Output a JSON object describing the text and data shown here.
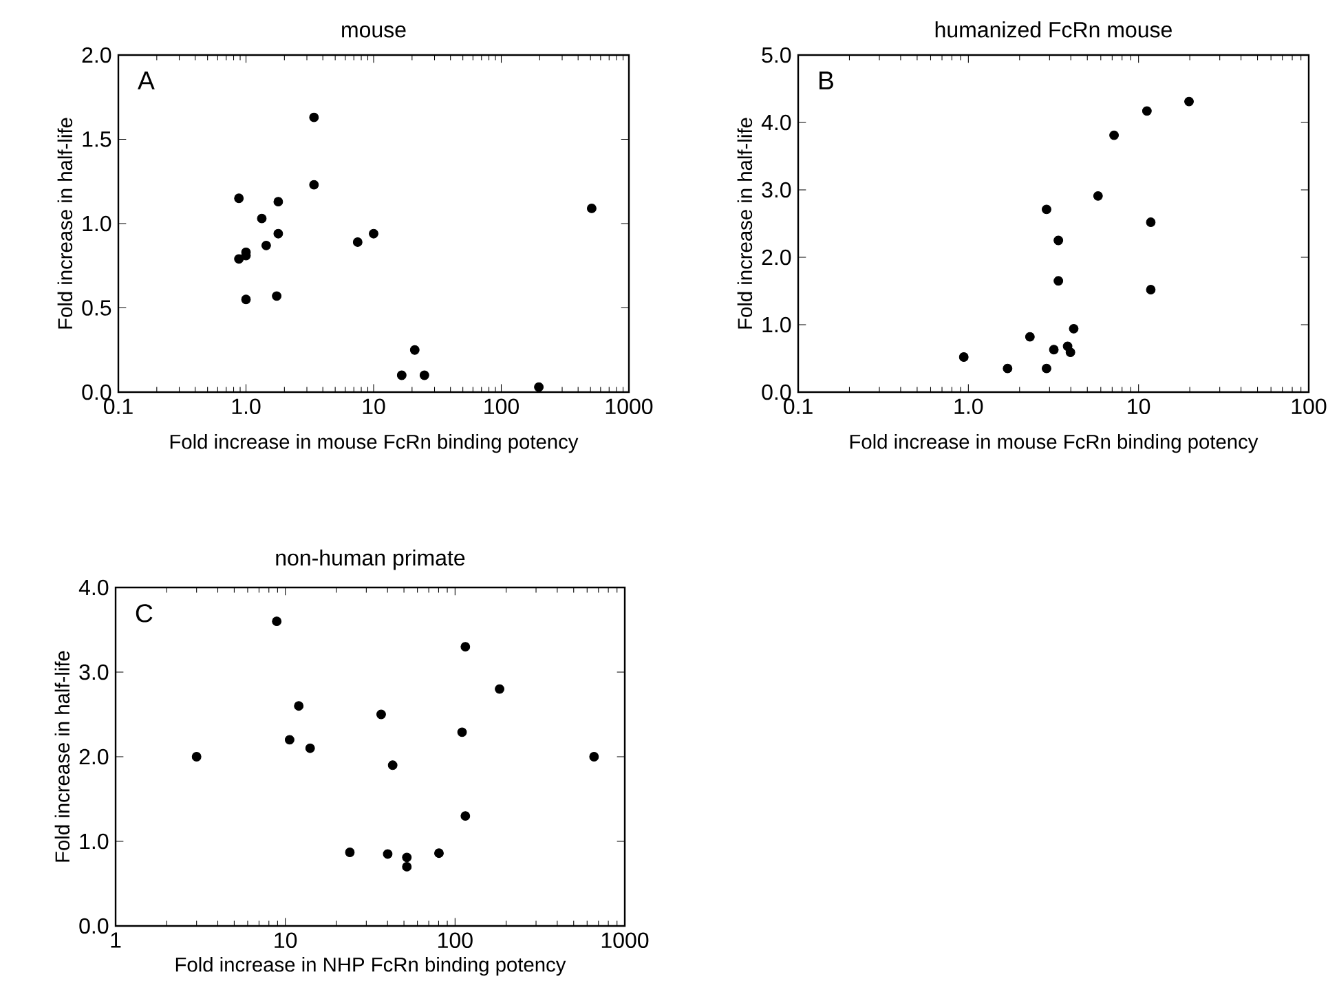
{
  "chart_data": [
    {
      "type": "scatter",
      "title": "mouse",
      "xlabel": "Fold increase in mouse FcRn binding potency",
      "ylabel": "Fold increase in half-life",
      "annotations": [
        "A"
      ],
      "log": "x",
      "marker": "circle",
      "color": "#000000",
      "x": [
        0.88,
        0.88,
        1.0,
        1.0,
        1.0,
        1.33,
        1.44,
        1.79,
        1.79,
        1.74,
        3.41,
        3.41,
        7.5,
        10,
        16.6,
        21,
        25,
        197,
        511
      ],
      "values": [
        1.15,
        0.79,
        0.83,
        0.81,
        0.55,
        1.03,
        0.87,
        1.13,
        0.94,
        0.57,
        1.63,
        1.23,
        0.89,
        0.94,
        0.1,
        0.25,
        0.1,
        0.03,
        1.09
      ],
      "xlim": [
        0.1,
        1000
      ],
      "ylim": [
        0,
        2
      ],
      "xticks": [
        0.1,
        {
          "value": 1,
          "label": "1.0"
        },
        10,
        100,
        1000
      ],
      "yticks": [
        {
          "value": 0,
          "label": "0.0"
        },
        0.5,
        {
          "value": 1,
          "label": "1.0"
        },
        1.5,
        {
          "value": 2,
          "label": "2.0"
        }
      ]
    },
    {
      "type": "scatter",
      "title": "humanized FcRn mouse",
      "xlabel": "Fold increase in mouse FcRn binding potency",
      "ylabel": "Fold increase in half-life",
      "annotations": [
        "B"
      ],
      "log": "x",
      "marker": "circle",
      "color": "#000000",
      "x": [
        0.94,
        1.7,
        2.88,
        2.3,
        2.88,
        3.18,
        3.38,
        3.38,
        3.83,
        3.98,
        4.16,
        5.78,
        7.18,
        11.2,
        11.8,
        11.8,
        19.8
      ],
      "values": [
        0.52,
        0.35,
        0.35,
        0.82,
        2.71,
        0.63,
        2.25,
        1.65,
        0.68,
        0.59,
        0.94,
        2.91,
        3.81,
        4.17,
        2.52,
        1.52,
        4.31
      ],
      "xlim": [
        0.1,
        100
      ],
      "ylim": [
        0,
        5
      ],
      "xticks": [
        0.1,
        {
          "value": 1,
          "label": "1.0"
        },
        10,
        100
      ],
      "yticks": [
        {
          "value": 0,
          "label": "0.0"
        },
        {
          "value": 1,
          "label": "1.0"
        },
        {
          "value": 2,
          "label": "2.0"
        },
        {
          "value": 3,
          "label": "3.0"
        },
        {
          "value": 4,
          "label": "4.0"
        },
        {
          "value": 5,
          "label": "5.0"
        }
      ]
    },
    {
      "type": "scatter",
      "title": "non-human primate",
      "xlabel": "Fold increase in NHP FcRn binding potency",
      "ylabel": "Fold increase in half-life",
      "annotations": [
        "C"
      ],
      "log": "x",
      "marker": "circle",
      "color": "#000000",
      "x": [
        3.0,
        8.9,
        10.6,
        12.0,
        14.0,
        24.0,
        36.7,
        40.1,
        42.9,
        52,
        52,
        80.4,
        110,
        115,
        115,
        183,
        659
      ],
      "values": [
        2.0,
        3.6,
        2.2,
        2.6,
        2.1,
        0.87,
        2.5,
        0.85,
        1.9,
        0.81,
        0.7,
        0.86,
        2.29,
        3.3,
        1.3,
        2.8,
        2.0
      ],
      "xlim": [
        1,
        1000
      ],
      "ylim": [
        0,
        4
      ],
      "xticks": [
        1,
        10,
        100,
        1000
      ],
      "yticks": [
        {
          "value": 0,
          "label": "0.0"
        },
        {
          "value": 1,
          "label": "1.0"
        },
        {
          "value": 2,
          "label": "2.0"
        },
        {
          "value": 3,
          "label": "3.0"
        },
        {
          "value": 4,
          "label": "4.0"
        }
      ]
    }
  ]
}
